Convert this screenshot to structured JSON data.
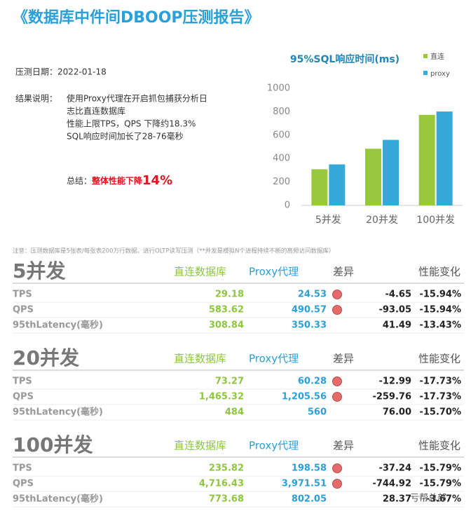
{
  "title": "《数据库中件间DBOOP压测报告》",
  "test_date": "压测日期：2022-01-18",
  "conclusion_label": "结果说明：",
  "conclusion_lines": [
    "使用Proxy代理在开启抓包捕获分析日",
    "志比直连数据库",
    "性能上限TPS，QPS 下降约18.3%",
    "SQL响应时间加长了28-76毫秒"
  ],
  "summary_label": "总结：",
  "summary_text": "整体性能下降",
  "summary_value": "14%",
  "chart_data": {
    "type": "bar",
    "title": "95%SQL响应时间(ms)",
    "categories": [
      "5并发",
      "20并发",
      "100并发"
    ],
    "series": [
      {
        "name": "直连",
        "color": "#98c93c",
        "values": [
          308.84,
          484,
          773.68
        ]
      },
      {
        "name": "proxy",
        "color": "#36a9d9",
        "values": [
          350.33,
          560,
          802.05
        ]
      }
    ],
    "ylim": [
      0,
      1000
    ],
    "yticks": [
      0,
      200,
      400,
      600,
      800,
      1000
    ],
    "legend": "top-right"
  },
  "note": "注意：压测数据库是5张表/每张表200万行数据。进行OLTP读写压测（**并发是模拟N个进程持续不断的高频访问数据库）",
  "sections": [
    {
      "heading": "5并发",
      "columns": [
        "直连数据库",
        "Proxy代理",
        "差异",
        "性能变化"
      ],
      "rows": [
        [
          "TPS",
          "29.18",
          "24.53",
          "-4.65",
          "-15.94%"
        ],
        [
          "QPS",
          "583.62",
          "490.57",
          "-93.05",
          "-15.94%"
        ],
        [
          "95thLatency(毫秒)",
          "308.84",
          "350.33",
          "41.49",
          "-13.43%"
        ]
      ]
    },
    {
      "heading": "20并发",
      "columns": [
        "直连数据库",
        "Proxy代理",
        "差异",
        "性能变化"
      ],
      "rows": [
        [
          "TPS",
          "73.27",
          "60.28",
          "-12.99",
          "-17.73%"
        ],
        [
          "QPS",
          "1,465.32",
          "1,205.56",
          "-259.76",
          "-17.73%"
        ],
        [
          "95thLatency(毫秒)",
          "484",
          "560",
          "76.00",
          "-15.70%"
        ]
      ]
    },
    {
      "heading": "100并发",
      "columns": [
        "直连数据库",
        "Proxy代理",
        "差异",
        "性能变化"
      ],
      "rows": [
        [
          "TPS",
          "235.82",
          "198.58",
          "-37.24",
          "-15.79%"
        ],
        [
          "QPS",
          "4,716.43",
          "3,971.51",
          "-744.92",
          "-15.79%"
        ],
        [
          "95thLatency(毫秒)",
          "773.68",
          "802.05",
          "28.37",
          "-3.67%"
        ]
      ]
    }
  ],
  "watermark": "亏帮总部"
}
